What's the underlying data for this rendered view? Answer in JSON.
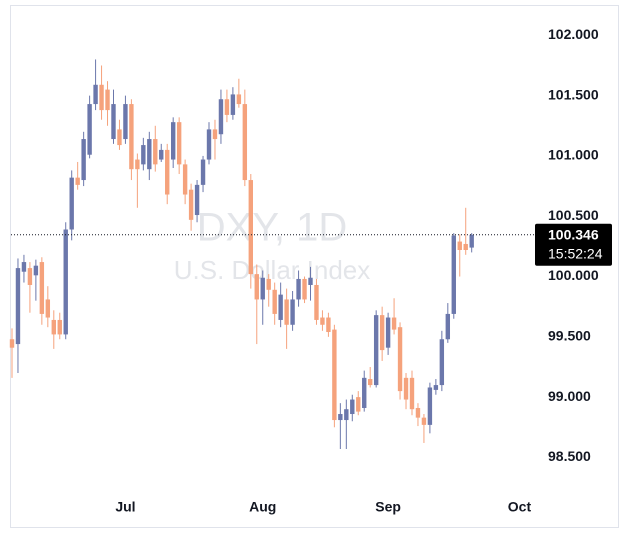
{
  "chart_data": {
    "type": "candlestick",
    "title": "DXY, 1D",
    "subtitle": "U.S. Dollar Index",
    "countdown": "15:52:24",
    "up_color": "#6b77ab",
    "down_color": "#f5a27c",
    "ylim": [
      98.23,
      102.21
    ],
    "yticks": [
      {
        "value": 102,
        "label": "102.000"
      },
      {
        "value": 101.5,
        "label": "101.500"
      },
      {
        "value": 101,
        "label": "101.000"
      },
      {
        "value": 100.5,
        "label": "100.500"
      },
      {
        "value": 100,
        "label": "100.000"
      },
      {
        "value": 99.5,
        "label": "99.500"
      },
      {
        "value": 99,
        "label": "99.000"
      },
      {
        "value": 98.5,
        "label": "98.500"
      }
    ],
    "categories": [
      null,
      null,
      null,
      null,
      null,
      null,
      null,
      null,
      null,
      null,
      null,
      null,
      null,
      null,
      null,
      null,
      null,
      null,
      null,
      "Jul",
      null,
      null,
      null,
      null,
      null,
      null,
      null,
      null,
      null,
      null,
      null,
      null,
      null,
      null,
      null,
      null,
      null,
      null,
      null,
      null,
      null,
      null,
      "Aug",
      null,
      null,
      null,
      null,
      null,
      null,
      null,
      null,
      null,
      null,
      null,
      null,
      null,
      null,
      null,
      null,
      null,
      null,
      null,
      null,
      "Sep",
      null,
      null,
      null,
      null,
      null,
      null,
      null,
      null,
      null,
      null,
      null,
      null,
      null,
      null,
      null,
      null,
      null,
      null,
      null,
      null,
      null,
      "Oct",
      null,
      null
    ],
    "open": [
      99.48,
      99.44,
      100.04,
      100.07,
      100.01,
      100.12,
      99.81,
      99.64,
      99.64,
      99.52,
      100.39,
      100.82,
      100.8,
      101.01,
      101.43,
      101.59,
      101.55,
      101.14,
      101.22,
      101.14,
      101.43,
      100.97,
      100.93,
      100.89,
      101.14,
      100.97,
      101.05,
      100.97,
      101.28,
      100.93,
      100.72,
      100.51,
      100.76,
      100.97,
      101.22,
      101.18,
      101.47,
      101.34,
      101.51,
      101.43,
      100.8,
      100.02,
      99.81,
      99.98,
      99.89,
      99.64,
      99.81,
      99.6,
      99.81,
      99.98,
      99.93,
      99.93,
      99.66,
      99.66,
      99.56,
      98.81,
      98.81,
      98.86,
      99.0,
      98.91,
      99.15,
      99.1,
      99.68,
      99.41,
      99.66,
      99.58,
      99.16,
      99.16,
      98.91,
      98.83,
      98.77,
      99.06,
      99.1,
      99.48,
      99.69,
      100.29,
      100.27,
      100.24,
      null,
      null,
      null,
      null,
      null,
      null,
      null,
      null,
      null,
      null
    ],
    "high": [
      99.57,
      100.15,
      100.18,
      100.12,
      100.14,
      100.16,
      99.92,
      99.72,
      99.7,
      100.45,
      100.88,
      100.95,
      101.2,
      101.5,
      101.8,
      101.75,
      101.62,
      101.55,
      101.3,
      101.5,
      101.47,
      101.02,
      101.15,
      101.2,
      101.25,
      101.1,
      101.1,
      101.32,
      101.32,
      100.97,
      100.77,
      100.8,
      101.0,
      101.28,
      101.3,
      101.55,
      101.55,
      101.57,
      101.64,
      101.55,
      100.85,
      100.1,
      100.05,
      100.02,
      99.95,
      99.95,
      99.9,
      99.88,
      100.05,
      100.0,
      100.08,
      99.98,
      99.72,
      99.7,
      99.6,
      98.95,
      98.98,
      99.02,
      99.05,
      99.22,
      99.25,
      99.72,
      99.75,
      99.7,
      99.82,
      99.62,
      99.2,
      99.22,
      98.95,
      98.86,
      99.12,
      99.15,
      99.55,
      99.78,
      100.36,
      100.35,
      100.57,
      100.36,
      null,
      null,
      null,
      null,
      null,
      null,
      null,
      null,
      null,
      null
    ],
    "low": [
      99.16,
      99.2,
      99.95,
      99.7,
      99.8,
      99.6,
      99.58,
      99.4,
      99.48,
      99.48,
      100.3,
      100.72,
      100.75,
      100.98,
      101.38,
      101.3,
      101.25,
      101.1,
      101.05,
      101.1,
      100.8,
      100.57,
      100.88,
      100.8,
      100.87,
      100.95,
      100.6,
      100.9,
      100.85,
      100.6,
      100.38,
      100.45,
      100.7,
      100.93,
      100.97,
      101.1,
      101.28,
      101.3,
      101.4,
      100.75,
      99.9,
      99.44,
      99.6,
      99.75,
      99.6,
      99.58,
      99.4,
      99.55,
      99.75,
      99.78,
      99.8,
      99.6,
      99.55,
      99.5,
      98.75,
      98.57,
      98.57,
      98.8,
      98.85,
      98.88,
      99.08,
      99.08,
      99.3,
      99.35,
      99.52,
      98.98,
      98.9,
      98.85,
      98.76,
      98.62,
      98.7,
      99.02,
      99.05,
      99.45,
      99.65,
      100.0,
      100.18,
      100.2,
      null,
      null,
      null,
      null,
      null,
      null,
      null,
      null,
      null,
      null
    ],
    "close": [
      99.41,
      100.07,
      100.12,
      99.93,
      100.09,
      99.69,
      99.66,
      99.52,
      99.52,
      100.39,
      100.82,
      100.76,
      101.14,
      101.43,
      101.59,
      101.38,
      101.38,
      101.43,
      101.09,
      101.43,
      100.89,
      100.89,
      101.09,
      101.14,
      100.93,
      101.05,
      100.68,
      101.28,
      100.93,
      100.68,
      100.47,
      100.76,
      100.97,
      101.22,
      101.14,
      101.47,
      101.34,
      101.51,
      101.43,
      100.8,
      100.02,
      99.81,
      99.99,
      99.89,
      99.69,
      99.85,
      99.6,
      99.81,
      99.98,
      99.81,
      99.99,
      99.64,
      99.6,
      99.54,
      98.81,
      98.86,
      98.9,
      98.98,
      98.88,
      99.16,
      99.1,
      99.68,
      99.39,
      99.66,
      99.56,
      99.05,
      98.98,
      98.9,
      98.83,
      98.77,
      99.08,
      99.1,
      99.48,
      99.69,
      100.34,
      100.22,
      100.22,
      100.346,
      null,
      null,
      null,
      null,
      null,
      null,
      null,
      null,
      null,
      null
    ]
  }
}
